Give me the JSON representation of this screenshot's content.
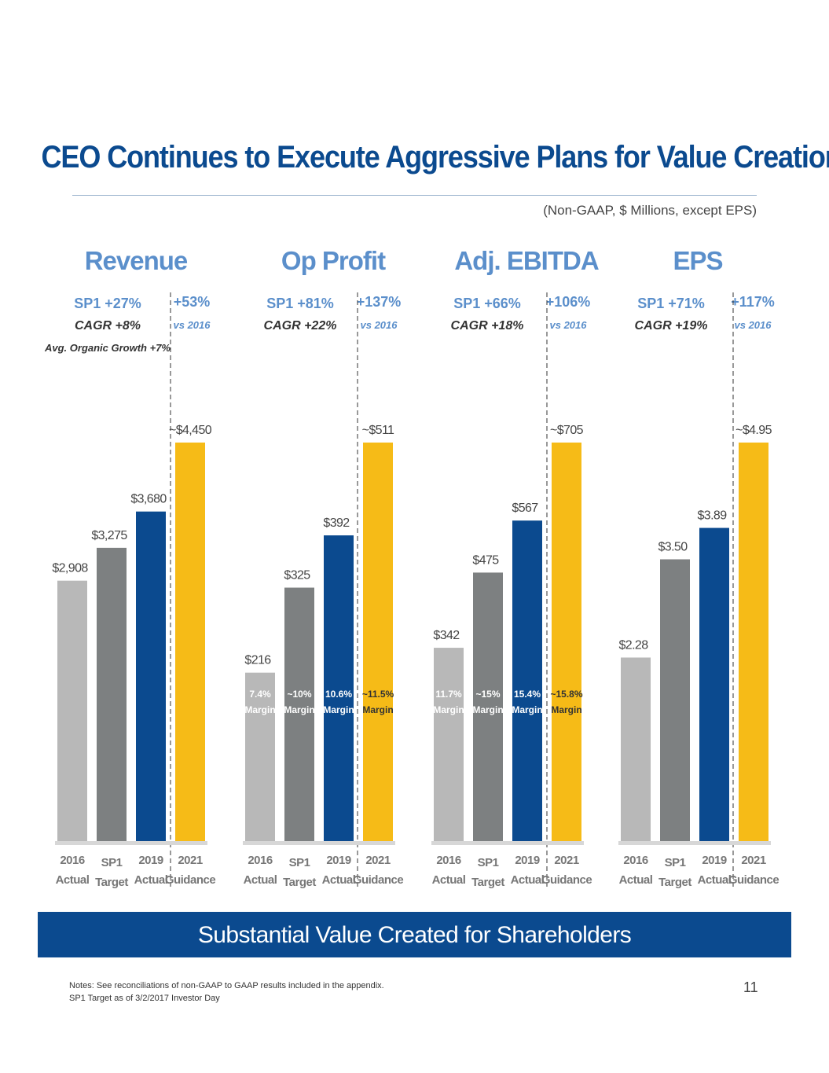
{
  "header": {
    "title": "CEO Continues to Execute Aggressive Plans for Value Creation",
    "units_note": "(Non-GAAP, $ Millions, except EPS)"
  },
  "colors": {
    "title_blue": "#0b4a8f",
    "panel_blue": "#5b8fcb",
    "bar_2016": "#b8b8b8",
    "bar_sp1": "#7d8081",
    "bar_2019": "#0b4a8f",
    "bar_2021": "#f6bb17"
  },
  "chart_data": [
    {
      "type": "bar",
      "title": "Revenue",
      "categories": [
        "2016 Actual",
        "SP1 Target",
        "2019 Actual",
        "2021 Guidance"
      ],
      "category_lines": [
        [
          "2016",
          "Actual"
        ],
        [
          "SP1",
          "Target"
        ],
        [
          "2019",
          "Actual"
        ],
        [
          "2021",
          "Guidance"
        ]
      ],
      "values": [
        2908,
        3275,
        3680,
        4450
      ],
      "value_labels": [
        "$2,908",
        "$3,275",
        "$3,680",
        "~$4,450"
      ],
      "margins": [],
      "sp1_label": "SP1 +27%",
      "cagr_label": "CAGR +8%",
      "extra_note": "Avg. Organic Growth +7%",
      "vs_label": "+53%",
      "vs_sub": "vs 2016",
      "ylim": [
        0,
        4450
      ]
    },
    {
      "type": "bar",
      "title": "Op Profit",
      "categories": [
        "2016 Actual",
        "SP1 Target",
        "2019 Actual",
        "2021 Guidance"
      ],
      "category_lines": [
        [
          "2016",
          "Actual"
        ],
        [
          "SP1",
          "Target"
        ],
        [
          "2019",
          "Actual"
        ],
        [
          "2021",
          "Guidance"
        ]
      ],
      "values": [
        216,
        325,
        392,
        511
      ],
      "value_labels": [
        "$216",
        "$325",
        "$392",
        "~$511"
      ],
      "margins": [
        [
          "7.4%",
          "Margin"
        ],
        [
          "~10%",
          "Margin"
        ],
        [
          "10.6%",
          "Margin"
        ],
        [
          "~11.5%",
          "Margin"
        ]
      ],
      "sp1_label": "SP1 +81%",
      "cagr_label": "CAGR +22%",
      "vs_label": "+137%",
      "vs_sub": "vs 2016",
      "ylim": [
        0,
        511
      ]
    },
    {
      "type": "bar",
      "title": "Adj. EBITDA",
      "categories": [
        "2016 Actual",
        "SP1 Target",
        "2019 Actual",
        "2021 Guidance"
      ],
      "category_lines": [
        [
          "2016",
          "Actual"
        ],
        [
          "SP1",
          "Target"
        ],
        [
          "2019",
          "Actual"
        ],
        [
          "2021",
          "Guidance"
        ]
      ],
      "values": [
        342,
        475,
        567,
        705
      ],
      "value_labels": [
        "$342",
        "$475",
        "$567",
        "~$705"
      ],
      "margins": [
        [
          "11.7%",
          "Margin"
        ],
        [
          "~15%",
          "Margin"
        ],
        [
          "15.4%",
          "Margin"
        ],
        [
          "~15.8%",
          "Margin"
        ]
      ],
      "sp1_label": "SP1 +66%",
      "cagr_label": "CAGR +18%",
      "vs_label": "+106%",
      "vs_sub": "vs 2016",
      "ylim": [
        0,
        705
      ]
    },
    {
      "type": "bar",
      "title": "EPS",
      "categories": [
        "2016 Actual",
        "SP1 Target",
        "2019 Actual",
        "2021 Guidance"
      ],
      "category_lines": [
        [
          "2016",
          "Actual"
        ],
        [
          "SP1",
          "Target"
        ],
        [
          "2019",
          "Actual"
        ],
        [
          "2021",
          "Guidance"
        ]
      ],
      "values": [
        2.28,
        3.5,
        3.89,
        4.95
      ],
      "value_labels": [
        "$2.28",
        "$3.50",
        "$3.89",
        "~$4.95"
      ],
      "margins": [],
      "sp1_label": "SP1 +71%",
      "cagr_label": "CAGR +19%",
      "vs_label": "+117%",
      "vs_sub": "vs 2016",
      "ylim": [
        0,
        4.95
      ]
    }
  ],
  "banner": {
    "text": "Substantial Value Created for Shareholders"
  },
  "footer": {
    "notes": [
      "Notes: See reconciliations of non-GAAP to GAAP results included in the appendix.",
      "SP1 Target as of 3/2/2017 Investor Day"
    ],
    "page_number": "11"
  }
}
